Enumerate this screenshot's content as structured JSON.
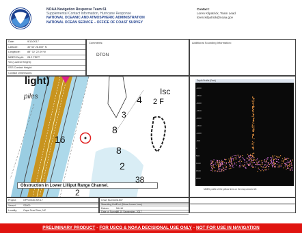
{
  "header": {
    "title": "NOAA Navigation Response Team 61",
    "subtitle": "Supplemental Contact Information, Hurricane Response",
    "agency_1": "NATIONAL OCEANIC AND ATMOSPHERIC ADMINISTRATION",
    "agency_2": "NATIONAL OCEAN SERVICE – OFFICE OF COAST SURVEY",
    "logo": "noaa-logo"
  },
  "contact": {
    "heading": "Contact:",
    "line1": "Loren Kilpatrick, Team Lead",
    "line2": "loren.kilpatrick@noaa.gov"
  },
  "metadata": {
    "rows": [
      {
        "key": "Date:",
        "value": "9/10/2017"
      },
      {
        "key": "Latitude:",
        "value": "30°40' 28.609\" N"
      },
      {
        "key": "Longitude:",
        "value": "88° 02' 22.09 W"
      },
      {
        "key": "MBES Depth:",
        "value": "28.2 FEET"
      },
      {
        "key": "VD (Lowest Height):",
        "value": ""
      },
      {
        "key": "SSS Contact Height:",
        "value": ""
      },
      {
        "key": "Contact Dimensions:",
        "value": ""
      }
    ]
  },
  "comments": {
    "label": "Comments:",
    "value": "DTON"
  },
  "additional": {
    "label": "Additional Sounding Information:"
  },
  "chart": {
    "caption": "Obstruction in Lower Lilliput Range Channel.",
    "labels": {
      "light": "light)",
      "piles": "piles",
      "n16": "16",
      "n8a": "8",
      "n8b": "8",
      "n3": "3",
      "n4": "4",
      "n2": "2",
      "isc": "Isc",
      "f": "2 F",
      "n38": "38",
      "n2b": "2"
    }
  },
  "profile": {
    "title": "Depth Profile (Feet)",
    "caption": "MBES profile of the yellow lines on the map area to left",
    "y_ticks": [
      "-4000",
      "-3500",
      "-3000",
      "-2500",
      "-2000",
      "-1500",
      "-1000",
      "-500",
      "0",
      "500",
      "1000",
      "1500",
      "2000"
    ]
  },
  "bottom": {
    "left": [
      {
        "key": "Project:",
        "value": "OPR-K340-KR-17"
      },
      {
        "key": "Vessel:",
        "value": "S3000"
      },
      {
        "key": "Locality:",
        "value": "Cape Fear River, NC"
      }
    ],
    "right": [
      {
        "key": "Chart Number:",
        "value": "11537"
      },
      {
        "key": "Sounding Unit:",
        "value": "Feet (Mean Lower Low)"
      },
      {
        "key": "Datum:",
        "value": "MLLW"
      },
      {
        "key": "Date of Survey:",
        "value": "09-10 September, 2017"
      }
    ]
  },
  "disclaimer": {
    "part1": "PRELIMINARY PRODUCT",
    "sep1": "-",
    "part2": "FOR USCG & NOAA DECISIONAL USE ONLY",
    "sep2": "-",
    "part3": "NOT FOR USE IN NAVIGATION"
  },
  "colors": {
    "disclaimer_bg": "#e01410",
    "channel": "#c8941f",
    "sonar_points": "#d070d8",
    "sonar_peak": "#e09040",
    "plot_bg": "#0a0a0a"
  }
}
